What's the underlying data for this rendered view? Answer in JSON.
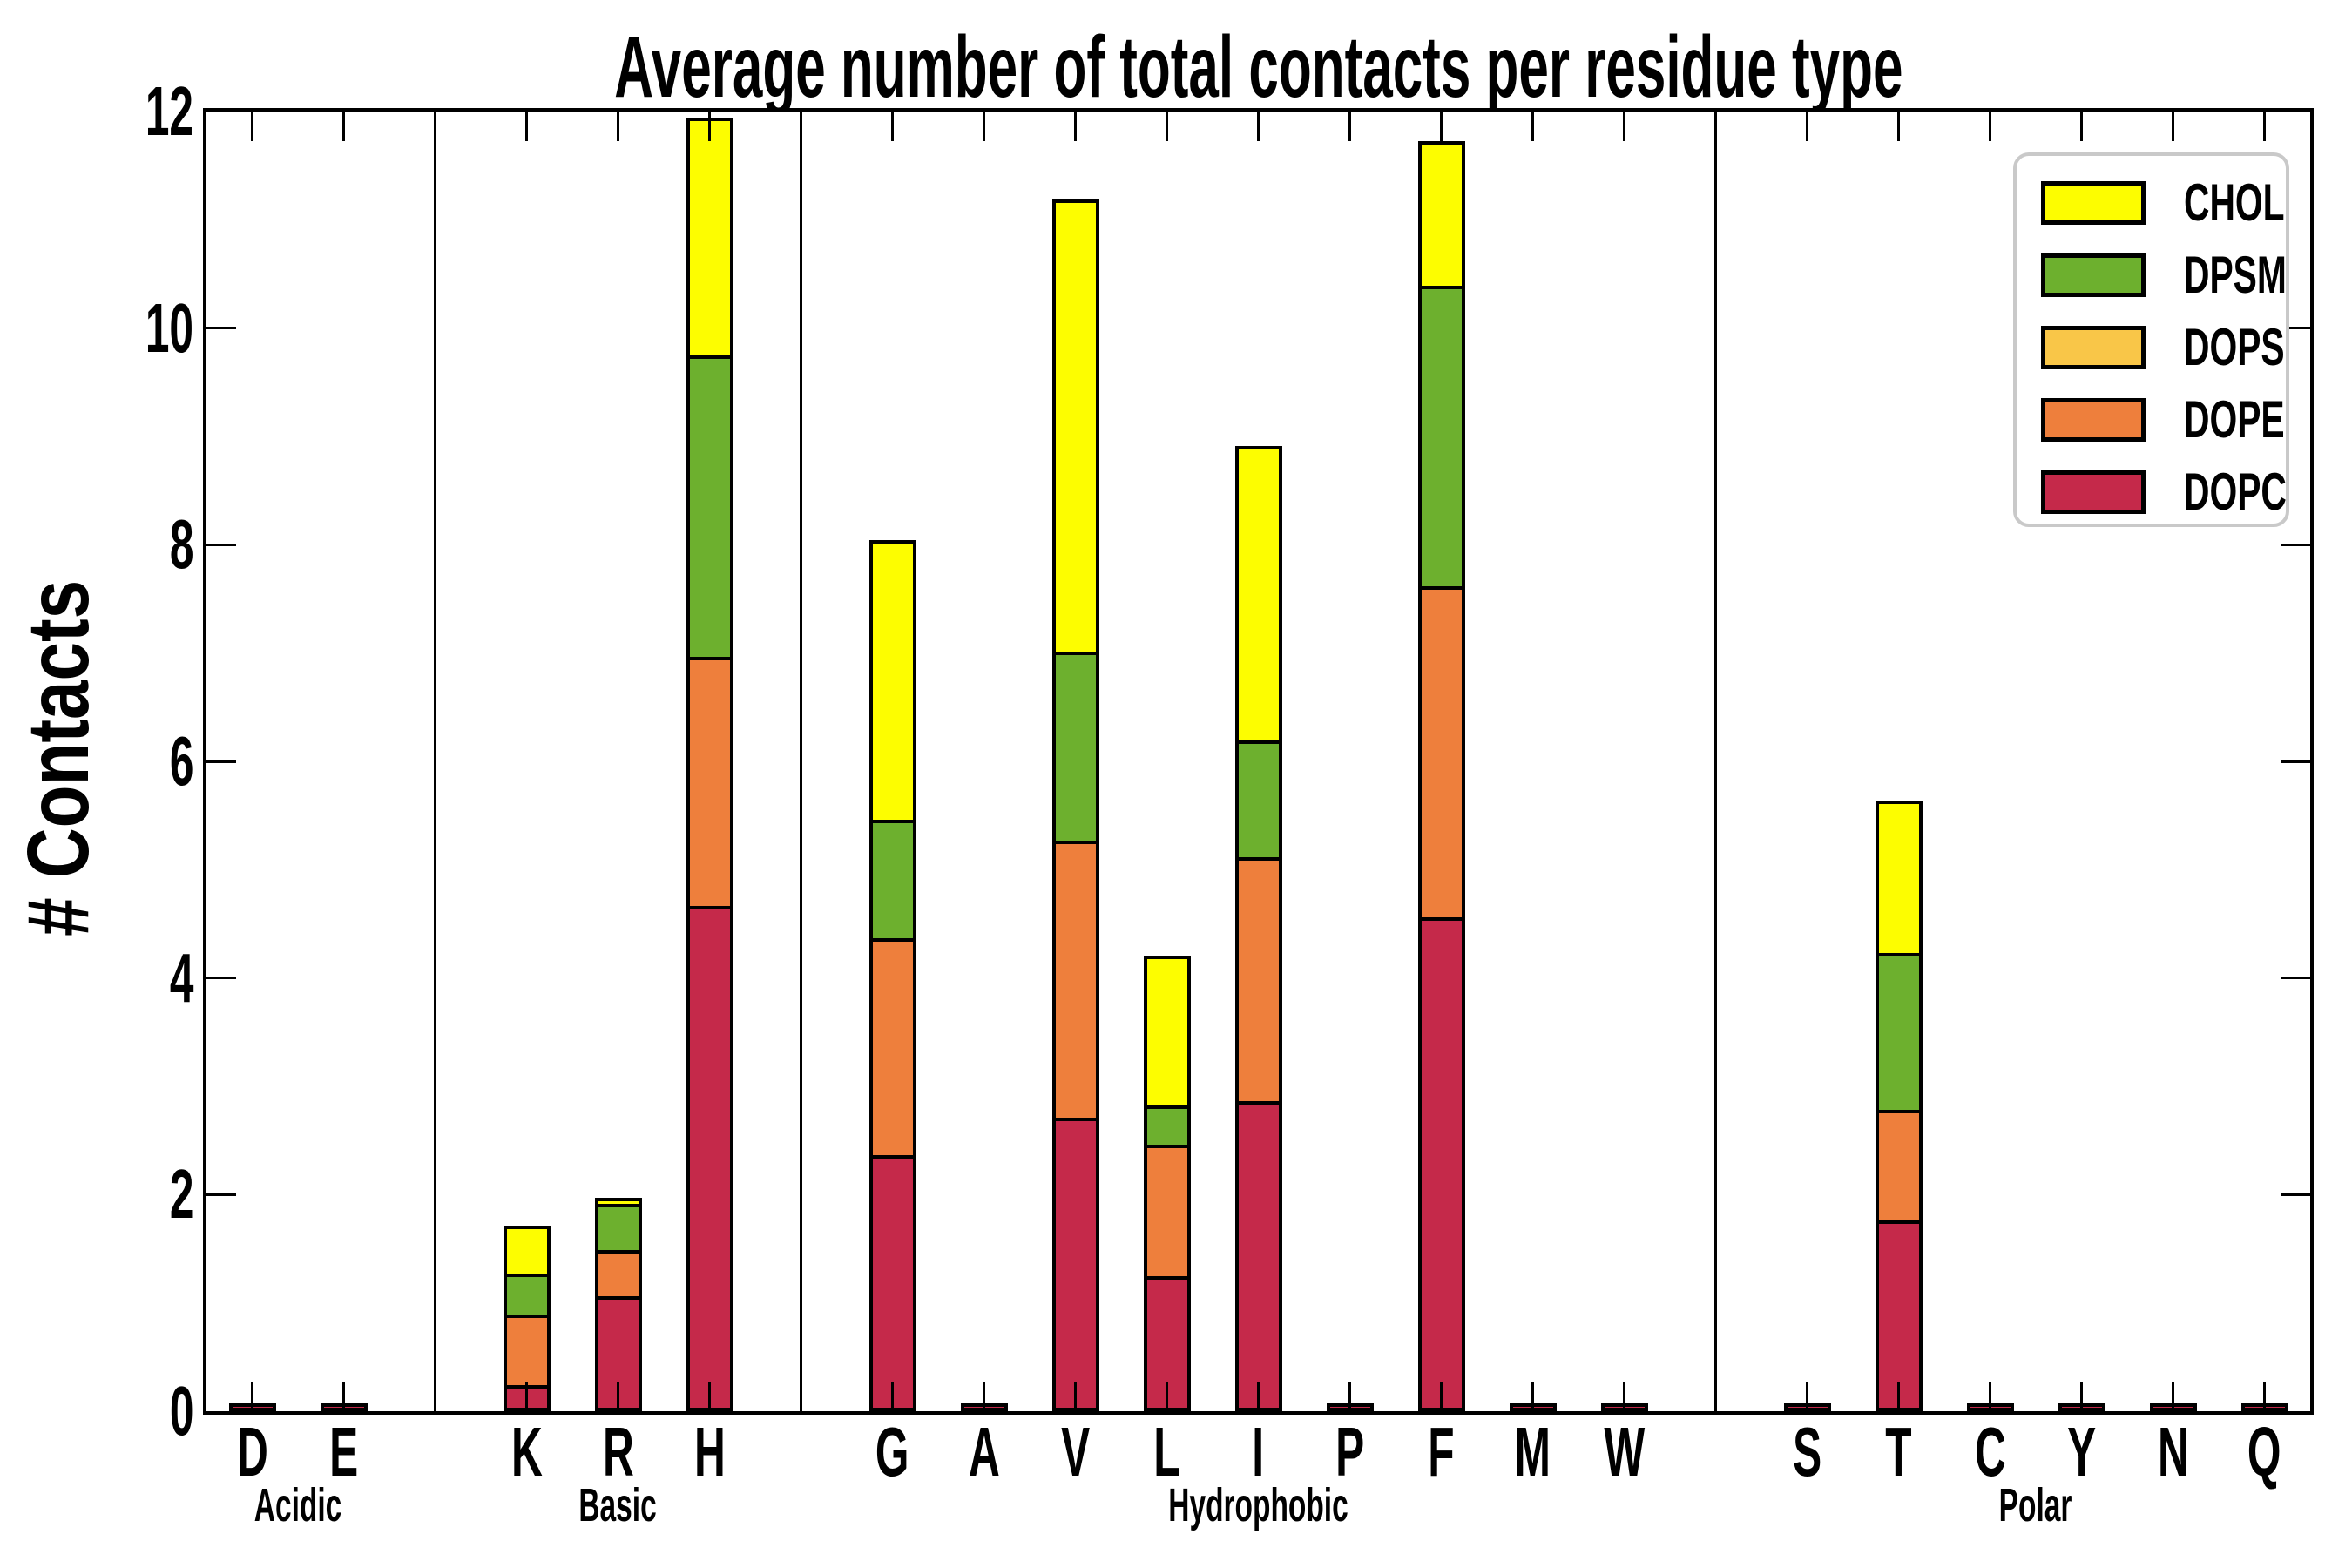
{
  "figure": {
    "background": "#ffffff",
    "axis_color": "#000000"
  },
  "chart_data": {
    "type": "bar",
    "stacked": true,
    "title": "Average number of total contacts per residue type",
    "ylabel": "# Contacts",
    "xlabel": "",
    "ylim": [
      0,
      12
    ],
    "yticks": [
      0,
      2,
      4,
      6,
      8,
      10,
      12
    ],
    "grid": false,
    "legend_position": "upper right",
    "legend_items": [
      {
        "label": "CHOL",
        "color": "#fdfd00"
      },
      {
        "label": "DPSM",
        "color": "#6db02e"
      },
      {
        "label": "DOPS",
        "color": "#f9c648"
      },
      {
        "label": "DOPE",
        "color": "#ee7f3c"
      },
      {
        "label": "DOPC",
        "color": "#c5294a"
      }
    ],
    "groups": [
      {
        "label": "Acidic",
        "residues": [
          "D",
          "E"
        ]
      },
      {
        "label": "Basic",
        "residues": [
          "K",
          "R",
          "H"
        ]
      },
      {
        "label": "Hydrophobic",
        "residues": [
          "G",
          "A",
          "V",
          "L",
          "I",
          "P",
          "F",
          "M",
          "W"
        ]
      },
      {
        "label": "Polar",
        "residues": [
          "S",
          "T",
          "C",
          "Y",
          "N",
          "Q"
        ]
      }
    ],
    "categories": [
      "D",
      "E",
      "K",
      "R",
      "H",
      "G",
      "A",
      "V",
      "L",
      "I",
      "P",
      "F",
      "M",
      "W",
      "S",
      "T",
      "C",
      "Y",
      "N",
      "Q"
    ],
    "series": [
      {
        "name": "DOPC",
        "color": "#c5294a",
        "values": [
          0.01,
          0.01,
          0.18,
          1.0,
          4.6,
          2.3,
          0.01,
          2.65,
          1.18,
          2.8,
          0.01,
          4.5,
          0.01,
          0.01,
          0.01,
          1.7,
          0.01,
          0.01,
          0.01,
          0.01
        ]
      },
      {
        "name": "DOPE",
        "color": "#ee7f3c",
        "values": [
          0,
          0,
          0.65,
          0.42,
          2.3,
          2.0,
          0,
          2.55,
          1.22,
          2.25,
          0,
          3.05,
          0,
          0,
          0,
          1.02,
          0,
          0,
          0,
          0
        ]
      },
      {
        "name": "DOPS",
        "color": "#f9c648",
        "values": [
          0,
          0,
          0,
          0,
          0,
          0,
          0,
          0,
          0,
          0,
          0,
          0,
          0,
          0,
          0,
          0,
          0,
          0,
          0,
          0
        ]
      },
      {
        "name": "DPSM",
        "color": "#6db02e",
        "values": [
          0,
          0,
          0.38,
          0.43,
          2.78,
          1.1,
          0,
          1.75,
          0.36,
          1.08,
          0,
          2.78,
          0,
          0,
          0,
          1.45,
          0,
          0,
          0,
          0
        ]
      },
      {
        "name": "CHOL",
        "color": "#fdfd00",
        "values": [
          0,
          0,
          0.44,
          0.06,
          2.2,
          2.58,
          0,
          4.17,
          1.38,
          2.72,
          0,
          1.33,
          0,
          0,
          0,
          1.4,
          0,
          0,
          0,
          0
        ]
      }
    ]
  }
}
